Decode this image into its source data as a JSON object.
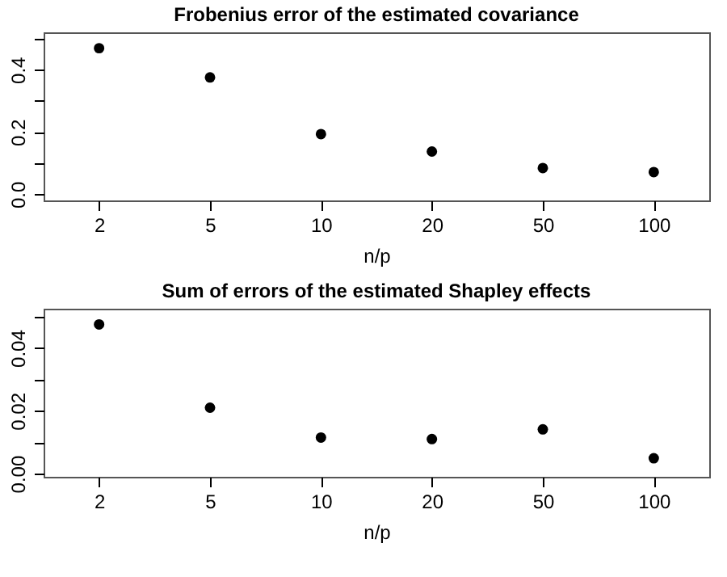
{
  "chart_data": [
    {
      "type": "scatter",
      "title": "Frobenius error of the estimated covariance",
      "xlabel": "n/p",
      "categories": [
        "2",
        "5",
        "10",
        "20",
        "50",
        "100"
      ],
      "series": [
        {
          "color": "#000000",
          "values": [
            0.469,
            0.375,
            0.193,
            0.137,
            0.084,
            0.071
          ]
        }
      ],
      "ylim": [
        -0.02,
        0.52
      ],
      "yticks": [
        {
          "value": 0,
          "label": "0.0"
        },
        {
          "value": 0.1,
          "label": null
        },
        {
          "value": 0.2,
          "label": "0.2"
        },
        {
          "value": 0.3,
          "label": null
        },
        {
          "value": 0.4,
          "label": "0.4"
        },
        {
          "value": 0.5,
          "label": null
        }
      ],
      "grid": false,
      "marker": "circle"
    },
    {
      "type": "scatter",
      "title": "Sum of errors of the estimated Shapley effects",
      "xlabel": "n/p",
      "categories": [
        "2",
        "5",
        "10",
        "20",
        "50",
        "100"
      ],
      "series": [
        {
          "color": "#000000",
          "values": [
            0.0475,
            0.021,
            0.0115,
            0.011,
            0.0141,
            0.0049
          ]
        }
      ],
      "ylim": [
        -0.001,
        0.0525
      ],
      "yticks": [
        {
          "value": 0,
          "label": "0.00"
        },
        {
          "value": 0.01,
          "label": null
        },
        {
          "value": 0.02,
          "label": "0.02"
        },
        {
          "value": 0.03,
          "label": null
        },
        {
          "value": 0.04,
          "label": "0.04"
        },
        {
          "value": 0.05,
          "label": null
        }
      ],
      "grid": false,
      "marker": "circle"
    }
  ]
}
